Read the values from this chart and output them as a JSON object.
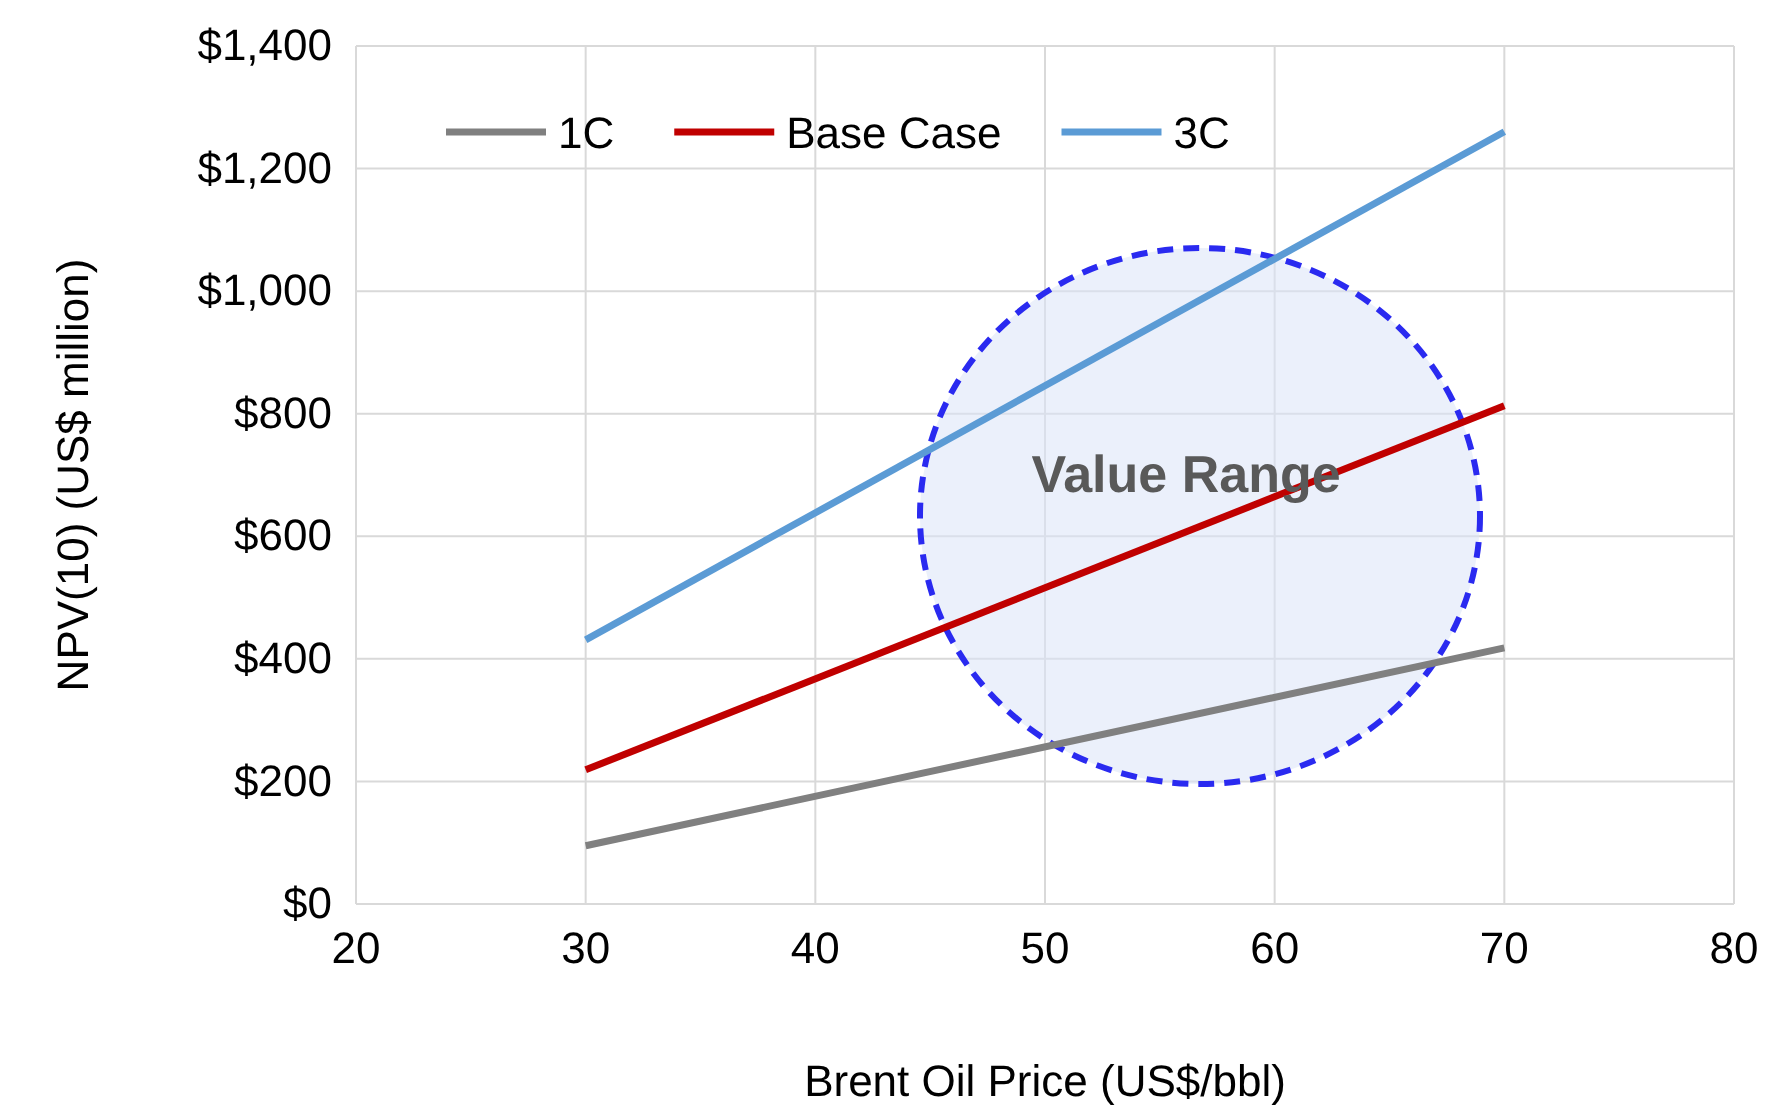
{
  "chart_data": {
    "type": "line",
    "xlabel": "Brent Oil Price (US$/bbl)",
    "ylabel": "NPV(10) (US$ million)",
    "xlim": [
      20,
      80
    ],
    "xticks": [
      20,
      30,
      40,
      50,
      60,
      70,
      80
    ],
    "ylim": [
      0,
      1400
    ],
    "yticks": [
      {
        "value": 0,
        "label": "$0"
      },
      {
        "value": 200,
        "label": "$200"
      },
      {
        "value": 400,
        "label": "$400"
      },
      {
        "value": 600,
        "label": "$600"
      },
      {
        "value": 800,
        "label": "$800"
      },
      {
        "value": 1000,
        "label": "$1,000"
      },
      {
        "value": 1200,
        "label": "$1,200"
      },
      {
        "value": 1400,
        "label": "$1,400"
      }
    ],
    "x": [
      30,
      70
    ],
    "series": [
      {
        "name": "1C",
        "color": "#808080",
        "values": [
          95,
          418
        ]
      },
      {
        "name": "Base Case",
        "color": "#c00000",
        "values": [
          219,
          813
        ]
      },
      {
        "name": "3C",
        "color": "#5b9bd5",
        "values": [
          431,
          1260
        ]
      }
    ],
    "annotations": [
      "Value Range"
    ],
    "grid": true,
    "legend": "top left",
    "marker": "none",
    "line_style": "solid"
  }
}
